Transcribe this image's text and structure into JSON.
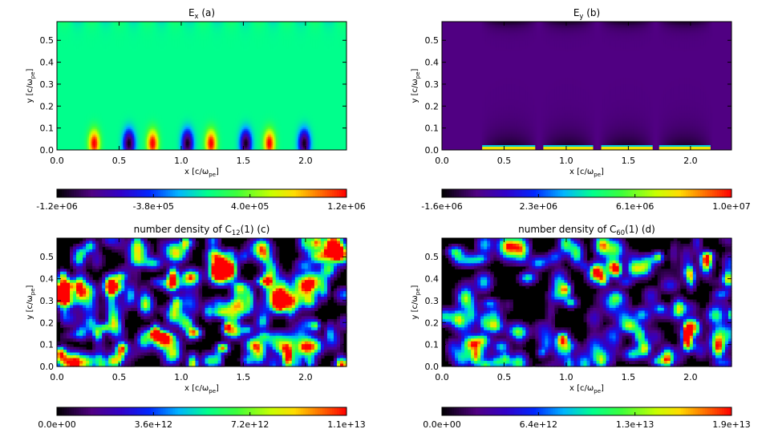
{
  "chart_data": [
    {
      "id": "a",
      "type": "heatmap",
      "title": "E",
      "title_sub": "x",
      "title_suffix": " (a)",
      "xlabel": "x [c/ω",
      "xlabel_sub": "pe",
      "xlabel_end": "]",
      "ylabel": "y [c/ω",
      "ylabel_sub": "pe",
      "ylabel_end": "]",
      "xlim": [
        0.0,
        2.33
      ],
      "ylim": [
        0.0,
        0.585
      ],
      "xticks": [
        0.0,
        0.5,
        1.0,
        1.5,
        2.0
      ],
      "xtick_labels": [
        "0.0",
        "0.5",
        "1.0",
        "1.5",
        "2.0"
      ],
      "yticks": [
        0.0,
        0.1,
        0.2,
        0.3,
        0.4,
        0.5
      ],
      "ytick_labels": [
        "0.0",
        "0.1",
        "0.2",
        "0.3",
        "0.4",
        "0.5"
      ],
      "colorbar": {
        "min": -1200000.0,
        "max": 1200000.0,
        "labels": [
          "-1.2e+06",
          "-3.8e+05",
          "4.0e+05",
          "1.2e+06"
        ]
      },
      "field": {
        "kind": "dipoles",
        "background": 0.52,
        "features": [
          {
            "x": 0.3,
            "y": 0.03,
            "sign": 1
          },
          {
            "x": 0.58,
            "y": 0.03,
            "sign": -1
          },
          {
            "x": 0.77,
            "y": 0.03,
            "sign": 1
          },
          {
            "x": 1.05,
            "y": 0.03,
            "sign": -1
          },
          {
            "x": 1.24,
            "y": 0.03,
            "sign": 1
          },
          {
            "x": 1.52,
            "y": 0.03,
            "sign": -1
          },
          {
            "x": 1.71,
            "y": 0.03,
            "sign": 1
          },
          {
            "x": 1.99,
            "y": 0.03,
            "sign": -1
          }
        ]
      }
    },
    {
      "id": "b",
      "type": "heatmap",
      "title": "E",
      "title_sub": "y",
      "title_suffix": " (b)",
      "xlabel": "x [c/ω",
      "xlabel_sub": "pe",
      "xlabel_end": "]",
      "ylabel": "y [c/ω",
      "ylabel_sub": "pe",
      "ylabel_end": "]",
      "xlim": [
        0.0,
        2.33
      ],
      "ylim": [
        0.0,
        0.585
      ],
      "xticks": [
        0.0,
        0.5,
        1.0,
        1.5,
        2.0
      ],
      "xtick_labels": [
        "0.0",
        "0.5",
        "1.0",
        "1.5",
        "2.0"
      ],
      "yticks": [
        0.0,
        0.1,
        0.2,
        0.3,
        0.4,
        0.5
      ],
      "ytick_labels": [
        "0.0",
        "0.1",
        "0.2",
        "0.3",
        "0.4",
        "0.5"
      ],
      "colorbar": {
        "min": -1600000.0,
        "max": 10000000.0,
        "labels": [
          "-1.6e+06",
          "2.3e+06",
          "6.1e+06",
          "1.0e+07"
        ]
      },
      "field": {
        "kind": "strips",
        "background": 0.12,
        "features": [
          {
            "x0": 0.33,
            "x1": 0.75
          },
          {
            "x0": 0.81,
            "x1": 1.22
          },
          {
            "x0": 1.28,
            "x1": 1.69
          },
          {
            "x0": 1.75,
            "x1": 2.16
          }
        ]
      }
    },
    {
      "id": "c",
      "type": "heatmap",
      "title": "number density of C",
      "title_sub": "12",
      "title_suffix": "(1) (c)",
      "xlabel": "x [c/ω",
      "xlabel_sub": "pe",
      "xlabel_end": "]",
      "ylabel": "y [c/ω",
      "ylabel_sub": "pe",
      "ylabel_end": "]",
      "xlim": [
        0.0,
        2.33
      ],
      "ylim": [
        0.0,
        0.585
      ],
      "xticks": [
        0.0,
        0.5,
        1.0,
        1.5,
        2.0
      ],
      "xtick_labels": [
        "0.0",
        "0.5",
        "1.0",
        "1.5",
        "2.0"
      ],
      "yticks": [
        0.0,
        0.1,
        0.2,
        0.3,
        0.4,
        0.5
      ],
      "ytick_labels": [
        "0.0",
        "0.1",
        "0.2",
        "0.3",
        "0.4",
        "0.5"
      ],
      "colorbar": {
        "min": 0.0,
        "max": 11000000000000.0,
        "labels": [
          "0.0e+00",
          "3.6e+12",
          "7.2e+12",
          "1.1e+13"
        ]
      },
      "field": {
        "kind": "noise",
        "seed": 12,
        "blobs": 320,
        "peak": 0.55
      }
    },
    {
      "id": "d",
      "type": "heatmap",
      "title": "number density of C",
      "title_sub": "60",
      "title_suffix": "(1) (d)",
      "xlabel": "x [c/ω",
      "xlabel_sub": "pe",
      "xlabel_end": "]",
      "ylabel": "y [c/ω",
      "ylabel_sub": "pe",
      "ylabel_end": "]",
      "xlim": [
        0.0,
        2.33
      ],
      "ylim": [
        0.0,
        0.585
      ],
      "xticks": [
        0.0,
        0.5,
        1.0,
        1.5,
        2.0
      ],
      "xtick_labels": [
        "0.0",
        "0.5",
        "1.0",
        "1.5",
        "2.0"
      ],
      "yticks": [
        0.0,
        0.1,
        0.2,
        0.3,
        0.4,
        0.5
      ],
      "ytick_labels": [
        "0.0",
        "0.1",
        "0.2",
        "0.3",
        "0.4",
        "0.5"
      ],
      "colorbar": {
        "min": 0.0,
        "max": 19000000000000.0,
        "labels": [
          "0.0e+00",
          "6.4e+12",
          "1.3e+13",
          "1.9e+13"
        ]
      },
      "field": {
        "kind": "noise",
        "seed": 60,
        "blobs": 260,
        "peak": 0.45,
        "hotspots": [
          {
            "x": 0.96,
            "y": 0.13,
            "v": 0.85
          },
          {
            "x": 0.98,
            "y": 0.36,
            "v": 0.55
          }
        ]
      }
    }
  ]
}
